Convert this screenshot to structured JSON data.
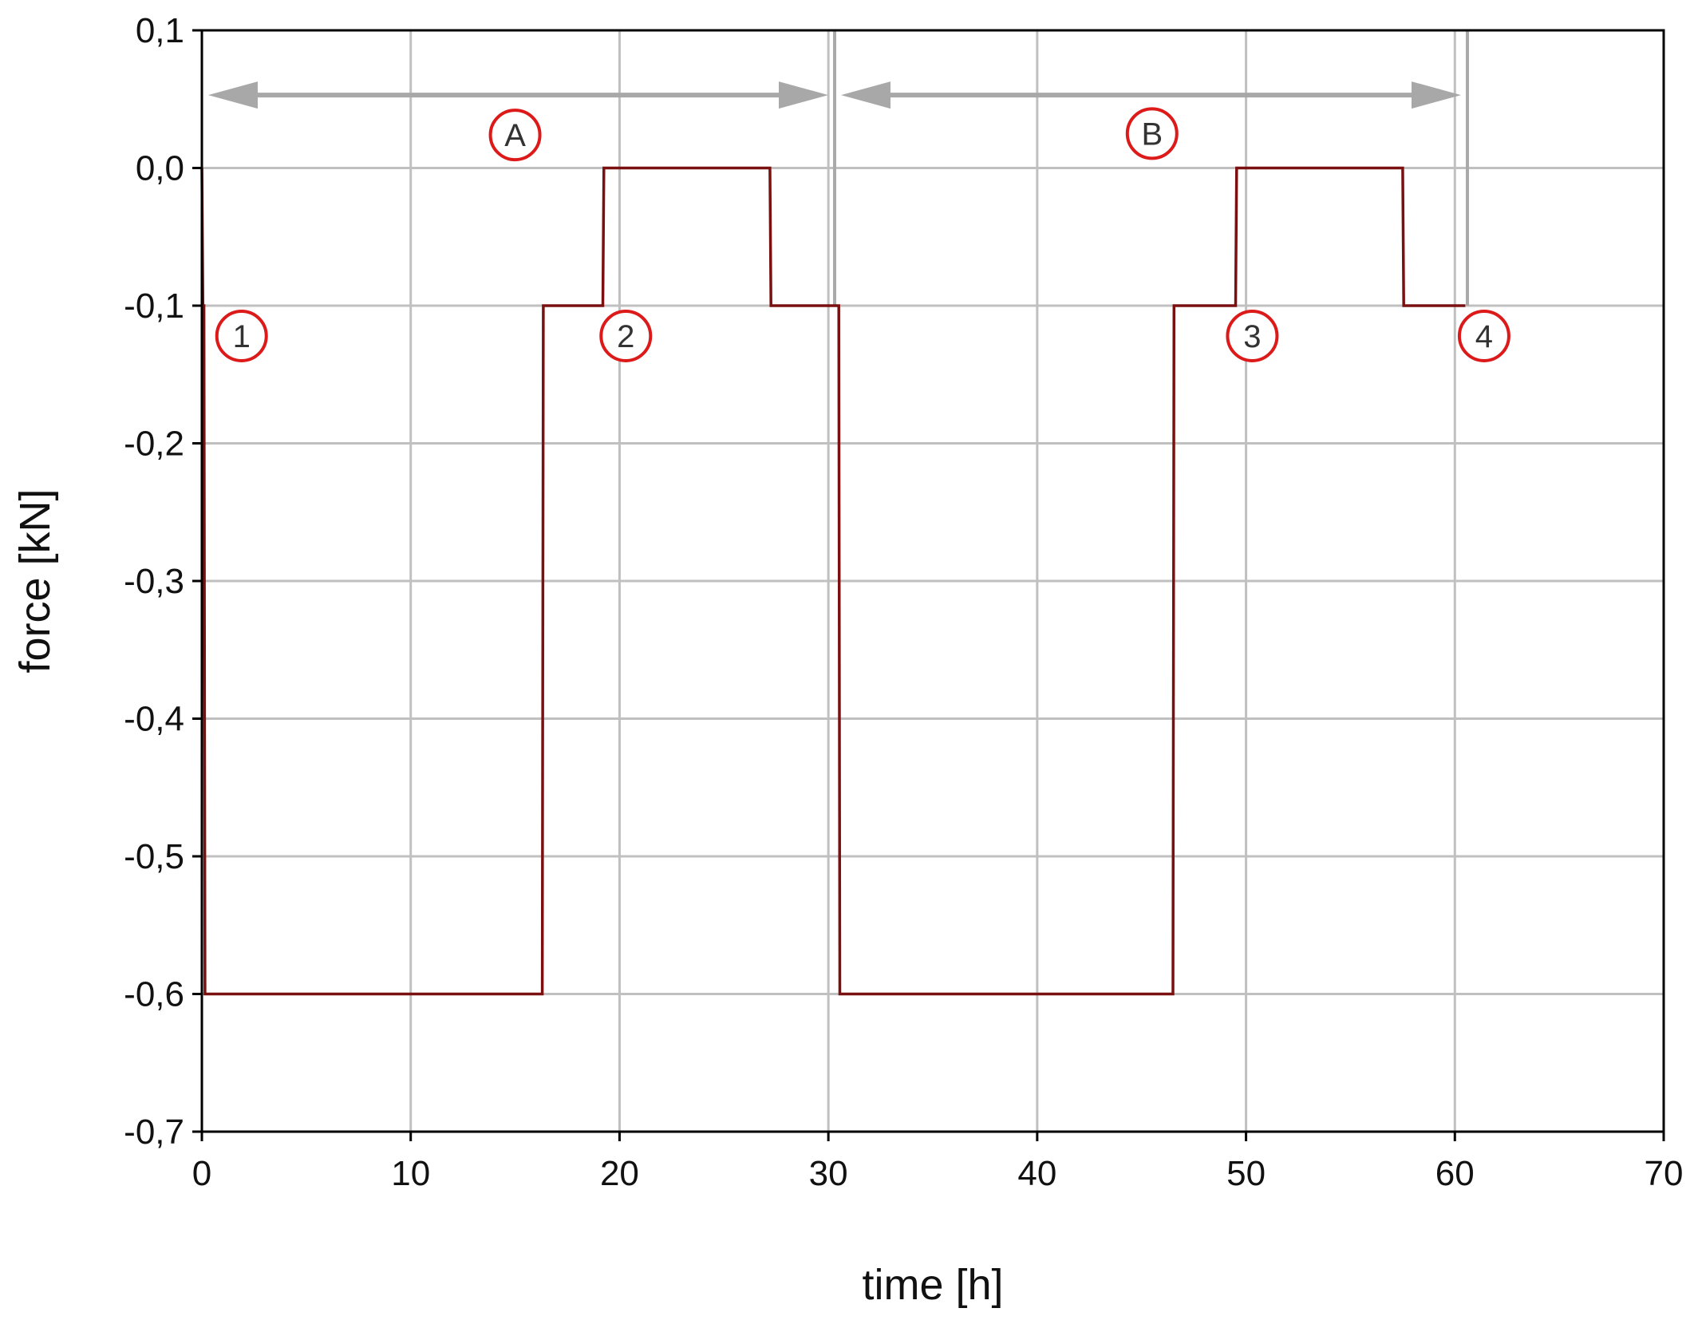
{
  "chart_data": {
    "type": "line",
    "title": "",
    "xlabel": "time [h]",
    "ylabel": "force [kN]",
    "xlim": [
      0,
      70
    ],
    "ylim": [
      -0.7,
      0.1
    ],
    "grid": true,
    "x_ticks": [
      0,
      10,
      20,
      30,
      40,
      50,
      60,
      70
    ],
    "x_tick_labels": [
      "0",
      "10",
      "20",
      "30",
      "40",
      "50",
      "60",
      "70"
    ],
    "y_ticks": [
      0.1,
      0.0,
      -0.1,
      -0.2,
      -0.3,
      -0.4,
      -0.5,
      -0.6,
      -0.7
    ],
    "y_tick_labels": [
      "0,1",
      "0,0",
      "-0,1",
      "-0,2",
      "-0,3",
      "-0,4",
      "-0,5",
      "-0,6",
      "-0,7"
    ],
    "series": [
      {
        "color": "#7a1010",
        "x": [
          0,
          0.05,
          0.1,
          0.15,
          0.25,
          16.3,
          16.35,
          19.2,
          19.25,
          27.2,
          27.25,
          30.5,
          30.55,
          46.5,
          46.55,
          49.5,
          49.55,
          57.5,
          57.55,
          60.5
        ],
        "y": [
          0.0,
          -0.1,
          -0.1,
          -0.6,
          -0.6,
          -0.6,
          -0.1,
          -0.1,
          0.0,
          0.0,
          -0.1,
          -0.1,
          -0.6,
          -0.6,
          -0.1,
          -0.1,
          0.0,
          0.0,
          -0.1,
          -0.1
        ]
      }
    ],
    "phase_markers": [
      {
        "x": 30.3,
        "color": "#aaaaaa"
      },
      {
        "x": 60.6,
        "color": "#aaaaaa"
      }
    ],
    "phase_arrows": [
      {
        "label": "A",
        "x_start": 0,
        "x_end": 30.3,
        "y": 0.053,
        "label_x": 15,
        "label_y": 0.024
      },
      {
        "label": "B",
        "x_start": 30.3,
        "x_end": 60.6,
        "y": 0.053,
        "label_x": 45.5,
        "label_y": 0.025
      }
    ],
    "point_markers": [
      {
        "label": "1",
        "x": 1.9,
        "y": -0.122
      },
      {
        "label": "2",
        "x": 20.3,
        "y": -0.122
      },
      {
        "label": "3",
        "x": 50.3,
        "y": -0.122
      },
      {
        "label": "4",
        "x": 61.4,
        "y": -0.122
      }
    ],
    "colors": {
      "grid": "#c0c0c0",
      "axis": "#000000",
      "arrow": "#a8a8a8",
      "marker_ring": "#dd1a1a",
      "line": "#7a1010"
    }
  }
}
